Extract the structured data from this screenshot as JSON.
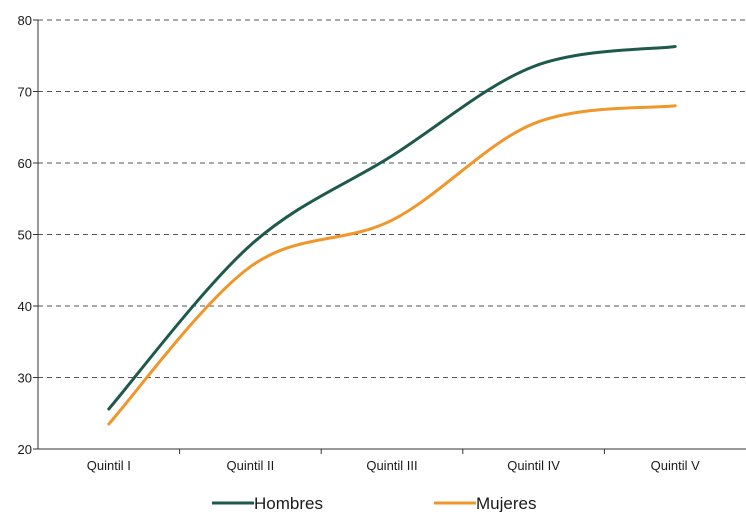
{
  "chart_data": {
    "type": "line",
    "categories": [
      "Quintil I",
      "Quintil II",
      "Quintil III",
      "Quintil IV",
      "Quintil V"
    ],
    "series": [
      {
        "name": "Hombres",
        "color": "#1e5a4c",
        "values": [
          25.6,
          48.5,
          61.0,
          73.5,
          76.3
        ]
      },
      {
        "name": "Mujeres",
        "color": "#f0962a",
        "values": [
          23.5,
          45.5,
          52.0,
          65.5,
          68.0
        ]
      }
    ],
    "ylim": [
      20,
      80
    ],
    "yticks": [
      20,
      30,
      40,
      50,
      60,
      70,
      80
    ],
    "grid": true,
    "legend_position": "bottom-center",
    "title": "",
    "xlabel": "",
    "ylabel": ""
  }
}
